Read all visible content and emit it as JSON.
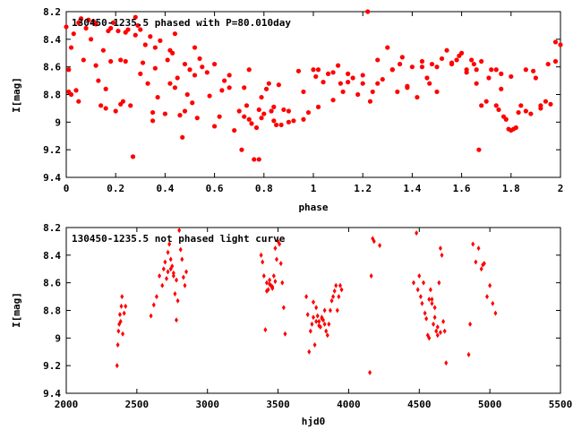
{
  "chart_data": [
    {
      "type": "scatter",
      "title": "130450-1235.5 phased with P=80.010day",
      "xlabel": "phase",
      "ylabel": "I[mag]",
      "xlim": [
        0,
        2
      ],
      "ylim": [
        9.4,
        8.2
      ],
      "y_inverted": true,
      "xticks": [
        "0",
        "0.2",
        "0.4",
        "0.6",
        "0.8",
        "1",
        "1.2",
        "1.4",
        "1.6",
        "1.8",
        "2"
      ],
      "yticks": [
        "8.2",
        "8.4",
        "8.6",
        "8.8",
        "9",
        "9.2",
        "9.4"
      ],
      "marker": "filled-circle",
      "color": "#ff0000",
      "series": [
        {
          "x": [
            0.0,
            0.01,
            0.02,
            0.03,
            0.04,
            0.05,
            0.06,
            0.08,
            0.09,
            0.1,
            0.11,
            0.12,
            0.13,
            0.14,
            0.15,
            0.16,
            0.17,
            0.18,
            0.19,
            0.2,
            0.21,
            0.22,
            0.23,
            0.24,
            0.25,
            0.26,
            0.27,
            0.28,
            0.29,
            0.3,
            0.31,
            0.32,
            0.33,
            0.34,
            0.35,
            0.36,
            0.37,
            0.38,
            0.4,
            0.41,
            0.42,
            0.43,
            0.44,
            0.45,
            0.46,
            0.47,
            0.48,
            0.49,
            0.5,
            0.51,
            0.52,
            0.53,
            0.55,
            0.57,
            0.58,
            0.6,
            0.62,
            0.64,
            0.66,
            0.68,
            0.7,
            0.71,
            0.72,
            0.73,
            0.74,
            0.75,
            0.76,
            0.77,
            0.78,
            0.79,
            0.8,
            0.81,
            0.82,
            0.83,
            0.84,
            0.85,
            0.86,
            0.88,
            0.9,
            0.92,
            0.94,
            0.96,
            0.98,
            1.0,
            1.02,
            1.04,
            1.06,
            1.08,
            1.1,
            1.12,
            1.14,
            1.16,
            1.18,
            1.2,
            1.22,
            1.24,
            1.26,
            1.28,
            1.3,
            1.32,
            1.34,
            1.36,
            1.38,
            1.4,
            1.42,
            1.44,
            1.46,
            1.48,
            1.5,
            1.52,
            1.54,
            1.56,
            1.58,
            1.6,
            1.62,
            1.64,
            1.65,
            1.66,
            1.67,
            1.68,
            1.7,
            1.72,
            1.74,
            1.75,
            1.76,
            1.77,
            1.78,
            1.79,
            1.8,
            1.81,
            1.82,
            1.84,
            1.86,
            1.88,
            1.9,
            1.92,
            1.94,
            1.96,
            1.98,
            2.0,
            0.02,
            0.05,
            0.12,
            0.18,
            0.24,
            0.3,
            0.36,
            0.42,
            0.48,
            0.54,
            0.6,
            0.66,
            0.72,
            0.78,
            0.84,
            0.9,
            0.96,
            1.02,
            1.08,
            1.14,
            1.2,
            1.26,
            1.32,
            1.38,
            1.44,
            1.5,
            1.56,
            1.62,
            1.68,
            1.74,
            1.8,
            1.86,
            1.92,
            1.98,
            0.01,
            0.07,
            0.16,
            0.22,
            0.28,
            0.35,
            0.44,
            0.52,
            0.63,
            0.74,
            0.79,
            0.87,
            1.01,
            1.11,
            1.23,
            1.35,
            1.47,
            1.59,
            1.66,
            1.71,
            1.76,
            1.83,
            1.89,
            1.95
          ],
          "y": [
            8.31,
            8.78,
            8.8,
            8.36,
            8.77,
            8.28,
            8.25,
            8.32,
            8.26,
            8.4,
            8.27,
            8.29,
            8.7,
            8.88,
            8.48,
            8.9,
            8.34,
            8.56,
            8.28,
            8.92,
            8.34,
            8.55,
            8.85,
            8.35,
            8.33,
            8.88,
            9.25,
            8.37,
            8.3,
            8.65,
            8.57,
            8.44,
            8.72,
            8.38,
            8.99,
            8.46,
            8.82,
            8.41,
            8.94,
            8.55,
            8.72,
            8.5,
            8.75,
            8.68,
            8.95,
            9.11,
            8.58,
            8.8,
            8.62,
            8.86,
            8.66,
            8.97,
            8.6,
            8.64,
            8.81,
            9.03,
            8.96,
            8.7,
            8.75,
            9.06,
            8.92,
            9.2,
            8.96,
            8.88,
            8.98,
            9.01,
            9.27,
            9.04,
            9.27,
            8.82,
            8.94,
            8.76,
            8.72,
            8.92,
            8.89,
            9.02,
            8.73,
            8.91,
            9.0,
            8.99,
            8.63,
            8.78,
            8.93,
            8.62,
            8.89,
            8.71,
            8.65,
            8.84,
            8.59,
            8.78,
            8.65,
            8.68,
            8.8,
            8.72,
            8.2,
            8.78,
            8.55,
            8.69,
            8.46,
            8.62,
            8.78,
            8.53,
            8.74,
            8.6,
            8.82,
            8.56,
            8.68,
            8.58,
            8.6,
            8.54,
            8.48,
            8.58,
            8.55,
            8.5,
            8.62,
            8.55,
            8.58,
            8.72,
            9.2,
            8.88,
            8.85,
            8.62,
            8.88,
            8.91,
            8.65,
            8.96,
            8.98,
            9.05,
            9.06,
            9.05,
            9.04,
            8.88,
            8.92,
            8.94,
            8.68,
            8.88,
            8.85,
            8.87,
            8.42,
            8.44,
            8.46,
            8.85,
            8.59,
            8.32,
            8.56,
            8.33,
            8.61,
            8.48,
            8.92,
            8.54,
            8.58,
            8.66,
            8.75,
            8.91,
            8.99,
            8.92,
            8.98,
            8.62,
            8.64,
            8.71,
            8.66,
            8.72,
            8.62,
            8.75,
            8.6,
            8.78,
            8.57,
            8.64,
            8.56,
            8.62,
            8.67,
            8.62,
            8.9,
            8.56,
            8.62,
            8.55,
            8.76,
            8.87,
            8.24,
            8.93,
            8.36,
            8.46,
            8.77,
            8.62,
            8.97,
            9.02,
            8.67,
            8.72,
            8.85,
            8.58,
            8.72,
            8.52,
            8.62,
            8.68,
            8.76,
            8.93,
            8.63,
            8.58
          ]
        }
      ]
    },
    {
      "type": "scatter",
      "title": "130450-1235.5 not phased light curve",
      "xlabel": "hjd0",
      "ylabel": "I[mag]",
      "xlim": [
        2000,
        5500
      ],
      "ylim": [
        9.4,
        8.2
      ],
      "y_inverted": true,
      "xticks": [
        "2000",
        "2500",
        "3000",
        "3500",
        "4000",
        "4500",
        "5000",
        "5500"
      ],
      "yticks": [
        "8.2",
        "8.4",
        "8.6",
        "8.8",
        "9",
        "9.2",
        "9.4"
      ],
      "marker": "diamond",
      "color": "#ff0000",
      "series": [
        {
          "x": [
            2360,
            2365,
            2370,
            2375,
            2380,
            2385,
            2390,
            2395,
            2400,
            2410,
            2420,
            2600,
            2620,
            2640,
            2660,
            2680,
            2690,
            2700,
            2710,
            2720,
            2730,
            2740,
            2750,
            2760,
            2770,
            2780,
            2790,
            2800,
            2810,
            2820,
            2830,
            2840,
            2850,
            3380,
            3390,
            3400,
            3410,
            3420,
            3430,
            3440,
            3450,
            3460,
            3470,
            3480,
            3490,
            3500,
            3510,
            3520,
            3530,
            3540,
            3550,
            3700,
            3710,
            3720,
            3730,
            3740,
            3750,
            3760,
            3770,
            3780,
            3790,
            3800,
            3810,
            3820,
            3830,
            3840,
            3850,
            3860,
            3870,
            3880,
            3890,
            3900,
            3910,
            3920,
            3930,
            3940,
            3950,
            4150,
            4160,
            4170,
            4180,
            4220,
            4460,
            4480,
            4490,
            4500,
            4510,
            4520,
            4530,
            4540,
            4550,
            4560,
            4570,
            4580,
            4590,
            4600,
            4610,
            4620,
            4630,
            4640,
            4650,
            4660,
            4670,
            4680,
            4690,
            4850,
            4860,
            4880,
            4900,
            4920,
            4940,
            4950,
            4960,
            4980,
            5000,
            5020,
            5040,
            3420,
            3440,
            3460,
            3480,
            3750,
            3770,
            3790,
            3810,
            3830,
            2720,
            2740,
            2760,
            2780,
            4570,
            4590,
            4610,
            4630,
            4650
          ],
          "y": [
            9.2,
            9.05,
            8.95,
            8.9,
            8.83,
            8.88,
            8.77,
            8.7,
            8.97,
            8.82,
            8.77,
            8.84,
            8.76,
            8.7,
            8.55,
            8.62,
            8.5,
            8.45,
            8.57,
            8.38,
            8.32,
            8.43,
            8.48,
            8.55,
            8.68,
            8.87,
            8.73,
            8.22,
            8.36,
            8.43,
            8.56,
            8.62,
            8.52,
            8.4,
            8.45,
            8.55,
            8.94,
            8.6,
            8.65,
            8.58,
            8.62,
            8.64,
            8.55,
            8.35,
            8.43,
            8.3,
            8.32,
            8.46,
            8.6,
            8.78,
            8.97,
            8.7,
            8.83,
            9.1,
            8.95,
            8.9,
            8.74,
            9.05,
            8.78,
            8.84,
            8.88,
            8.92,
            8.85,
            8.87,
            8.9,
            8.95,
            8.98,
            8.9,
            8.8,
            8.73,
            8.7,
            8.66,
            8.62,
            8.8,
            8.7,
            8.62,
            8.65,
            9.25,
            8.55,
            8.28,
            8.3,
            8.33,
            8.6,
            8.24,
            8.65,
            8.55,
            8.7,
            8.75,
            8.6,
            8.82,
            8.86,
            8.98,
            9.0,
            8.65,
            8.72,
            8.9,
            8.85,
            8.95,
            8.98,
            8.6,
            8.35,
            8.4,
            8.88,
            8.95,
            9.18,
            9.12,
            8.9,
            8.32,
            8.45,
            8.35,
            8.5,
            8.47,
            8.46,
            8.7,
            8.62,
            8.75,
            8.82,
            8.66,
            8.61,
            8.63,
            8.59,
            8.85,
            8.88,
            8.91,
            8.86,
            8.8,
            8.52,
            8.5,
            8.53,
            8.58,
            8.72,
            8.75,
            8.78,
            8.92,
            8.96
          ]
        }
      ]
    }
  ]
}
